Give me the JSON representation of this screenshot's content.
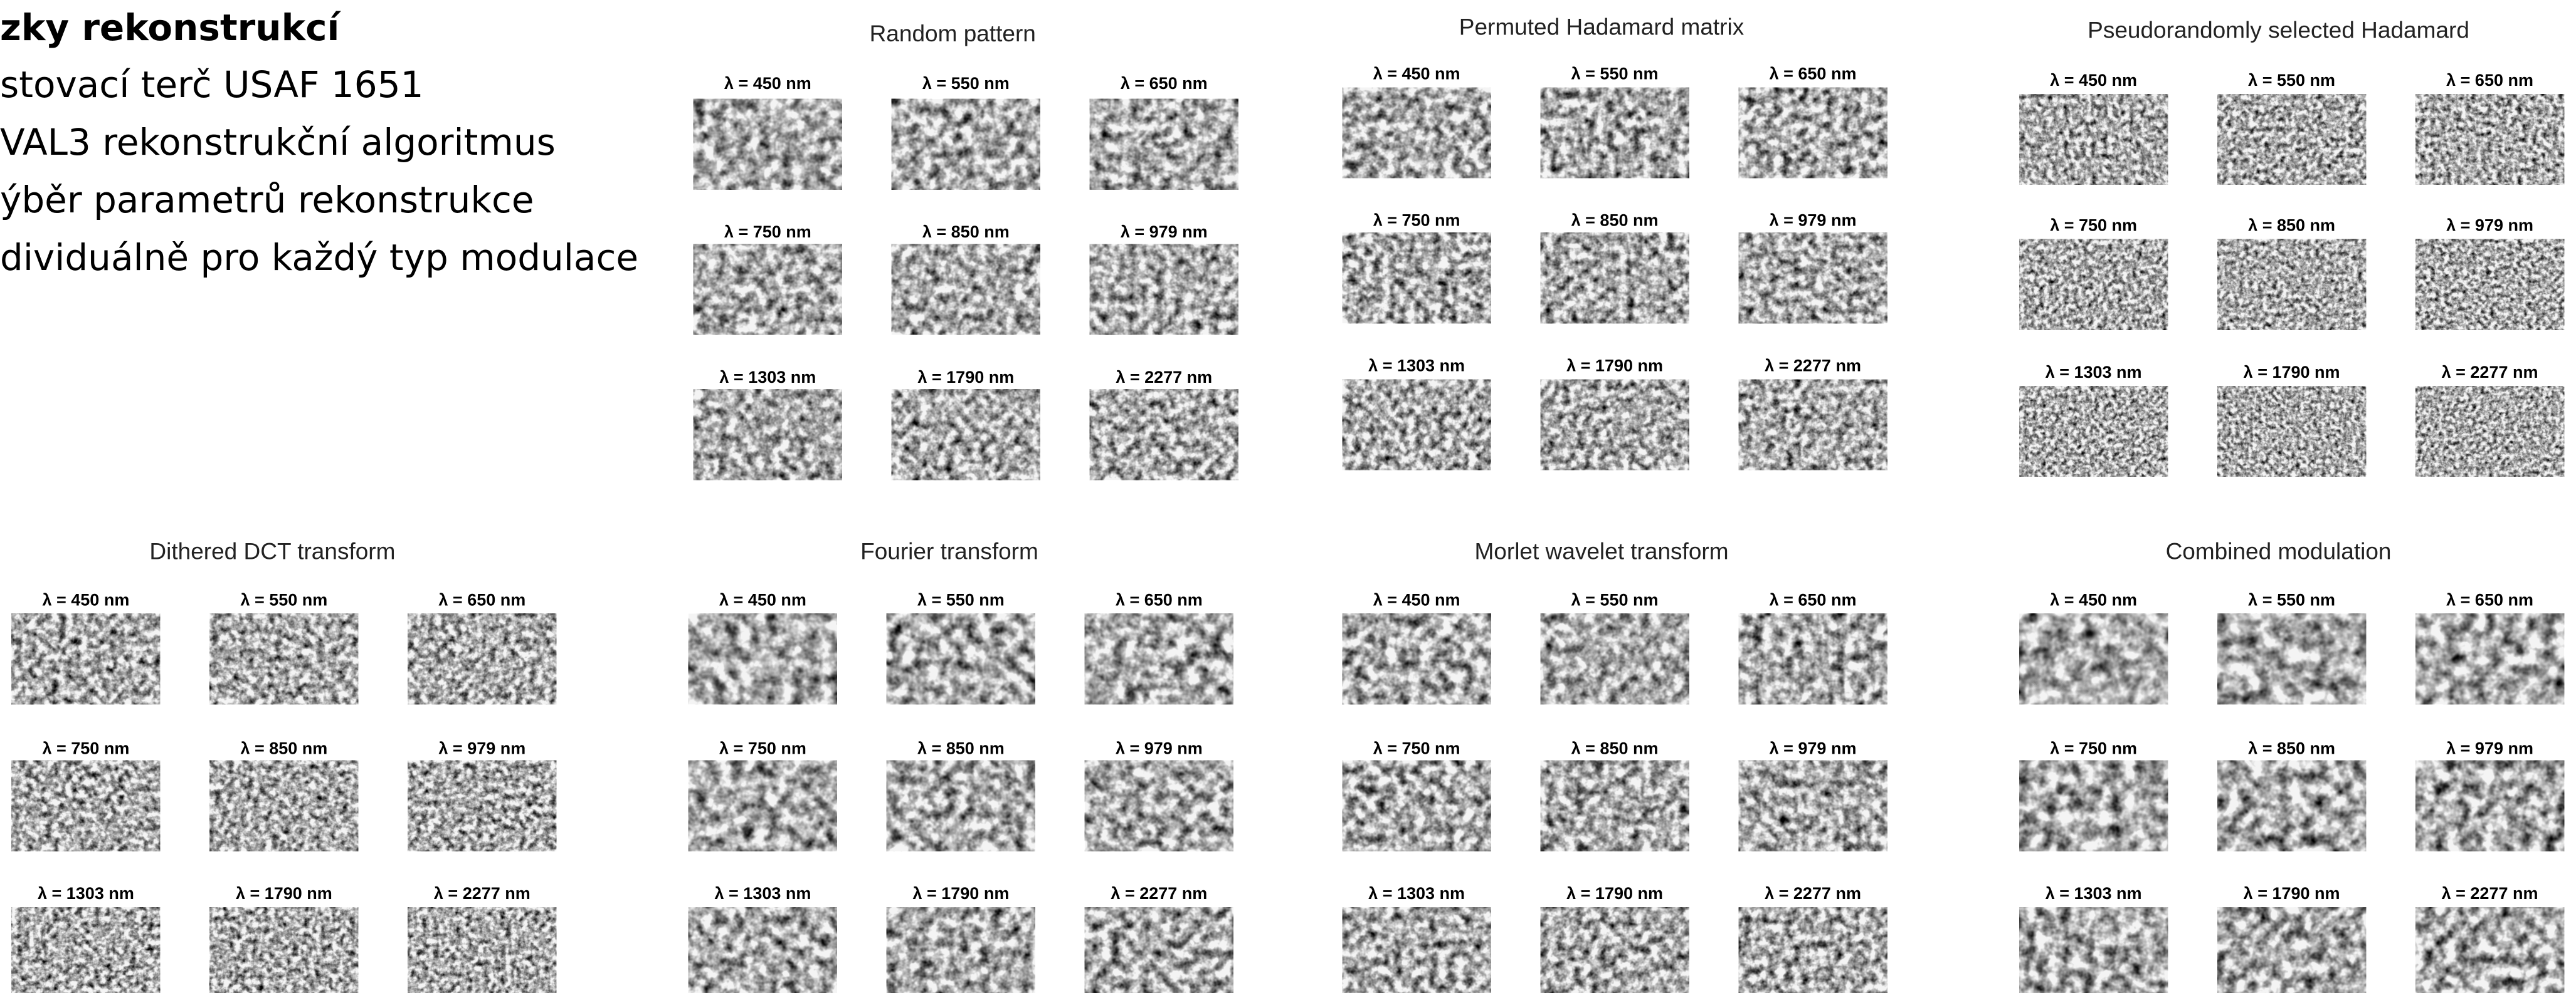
{
  "slide": {
    "title": "zky rekonstrukcí",
    "bullets": [
      "stovací terč USAF 1651",
      "VAL3 rekonstrukční algoritmus",
      "ýběr parametrů rekonstrukce",
      "dividuálně pro každý typ modulace"
    ]
  },
  "wavelength_labels": [
    "λ = 450 nm",
    "λ = 550 nm",
    "λ = 650 nm",
    "λ = 750 nm",
    "λ = 850 nm",
    "λ = 979 nm",
    "λ = 1303 nm",
    "λ = 1790 nm",
    "λ = 2277 nm"
  ],
  "panels": [
    {
      "title": "Random pattern"
    },
    {
      "title": "Permuted Hadamard matrix"
    },
    {
      "title": "Pseudorandomly selected Hadamard"
    },
    {
      "title": "Dithered DCT transform"
    },
    {
      "title": "Fourier transform"
    },
    {
      "title": "Morlet wavelet transform"
    },
    {
      "title": "Combined modulation"
    }
  ]
}
